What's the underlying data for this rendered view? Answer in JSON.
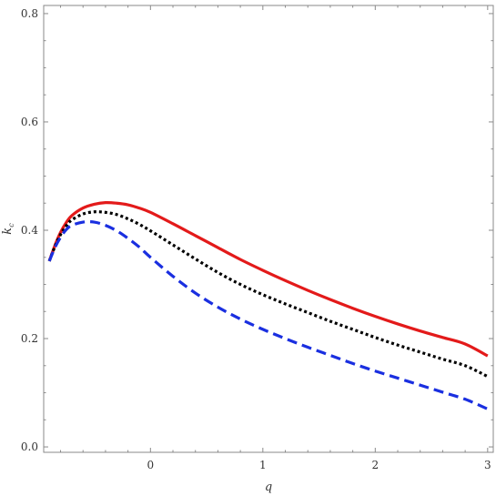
{
  "chart_data": {
    "type": "line",
    "title": "",
    "xlabel": "q",
    "ylabel": "k",
    "ylabel_subscript": "c",
    "xlim": [
      -0.95,
      3.05
    ],
    "ylim": [
      -0.01,
      0.815
    ],
    "xticks": [
      0,
      1,
      2,
      3
    ],
    "xtick_labels": [
      "0",
      "1",
      "2",
      "3"
    ],
    "yticks": [
      0.0,
      0.2,
      0.4,
      0.6,
      0.8
    ],
    "ytick_labels": [
      "0.0",
      "0.2",
      "0.4",
      "0.6",
      "0.8"
    ],
    "grid": false,
    "legend": "none",
    "series": [
      {
        "color": "#e31a1a",
        "dash": "solid",
        "x": [
          -0.9,
          -0.85,
          -0.8,
          -0.75,
          -0.7,
          -0.6,
          -0.5,
          -0.4,
          -0.3,
          -0.2,
          -0.1,
          0.0,
          0.2,
          0.4,
          0.6,
          0.8,
          1.0,
          1.2,
          1.4,
          1.6,
          1.8,
          2.0,
          2.2,
          2.4,
          2.6,
          2.8,
          3.0
        ],
        "y": [
          0.343,
          0.372,
          0.396,
          0.414,
          0.427,
          0.441,
          0.448,
          0.451,
          0.45,
          0.447,
          0.441,
          0.433,
          0.412,
          0.39,
          0.368,
          0.346,
          0.326,
          0.307,
          0.289,
          0.272,
          0.256,
          0.241,
          0.227,
          0.214,
          0.202,
          0.19,
          0.168
        ]
      },
      {
        "color": "#000000",
        "dash": "dotted",
        "x": [
          -0.9,
          -0.85,
          -0.8,
          -0.75,
          -0.7,
          -0.6,
          -0.5,
          -0.4,
          -0.3,
          -0.2,
          -0.1,
          0.0,
          0.2,
          0.4,
          0.6,
          0.8,
          1.0,
          1.2,
          1.4,
          1.6,
          1.8,
          2.0,
          2.2,
          2.4,
          2.6,
          2.8,
          3.0
        ],
        "y": [
          0.343,
          0.37,
          0.392,
          0.408,
          0.419,
          0.43,
          0.434,
          0.433,
          0.429,
          0.421,
          0.411,
          0.399,
          0.373,
          0.347,
          0.322,
          0.3,
          0.281,
          0.264,
          0.248,
          0.232,
          0.217,
          0.202,
          0.188,
          0.175,
          0.162,
          0.15,
          0.13
        ]
      },
      {
        "color": "#1a2fe0",
        "dash": "dashed",
        "x": [
          -0.9,
          -0.85,
          -0.8,
          -0.75,
          -0.7,
          -0.6,
          -0.5,
          -0.4,
          -0.3,
          -0.2,
          -0.1,
          0.0,
          0.2,
          0.4,
          0.6,
          0.8,
          1.0,
          1.2,
          1.4,
          1.6,
          1.8,
          2.0,
          2.2,
          2.4,
          2.6,
          2.8,
          3.0
        ],
        "y": [
          0.343,
          0.368,
          0.387,
          0.401,
          0.409,
          0.415,
          0.415,
          0.409,
          0.399,
          0.385,
          0.369,
          0.35,
          0.315,
          0.284,
          0.258,
          0.236,
          0.217,
          0.2,
          0.184,
          0.169,
          0.154,
          0.14,
          0.127,
          0.114,
          0.101,
          0.088,
          0.07
        ]
      }
    ]
  }
}
